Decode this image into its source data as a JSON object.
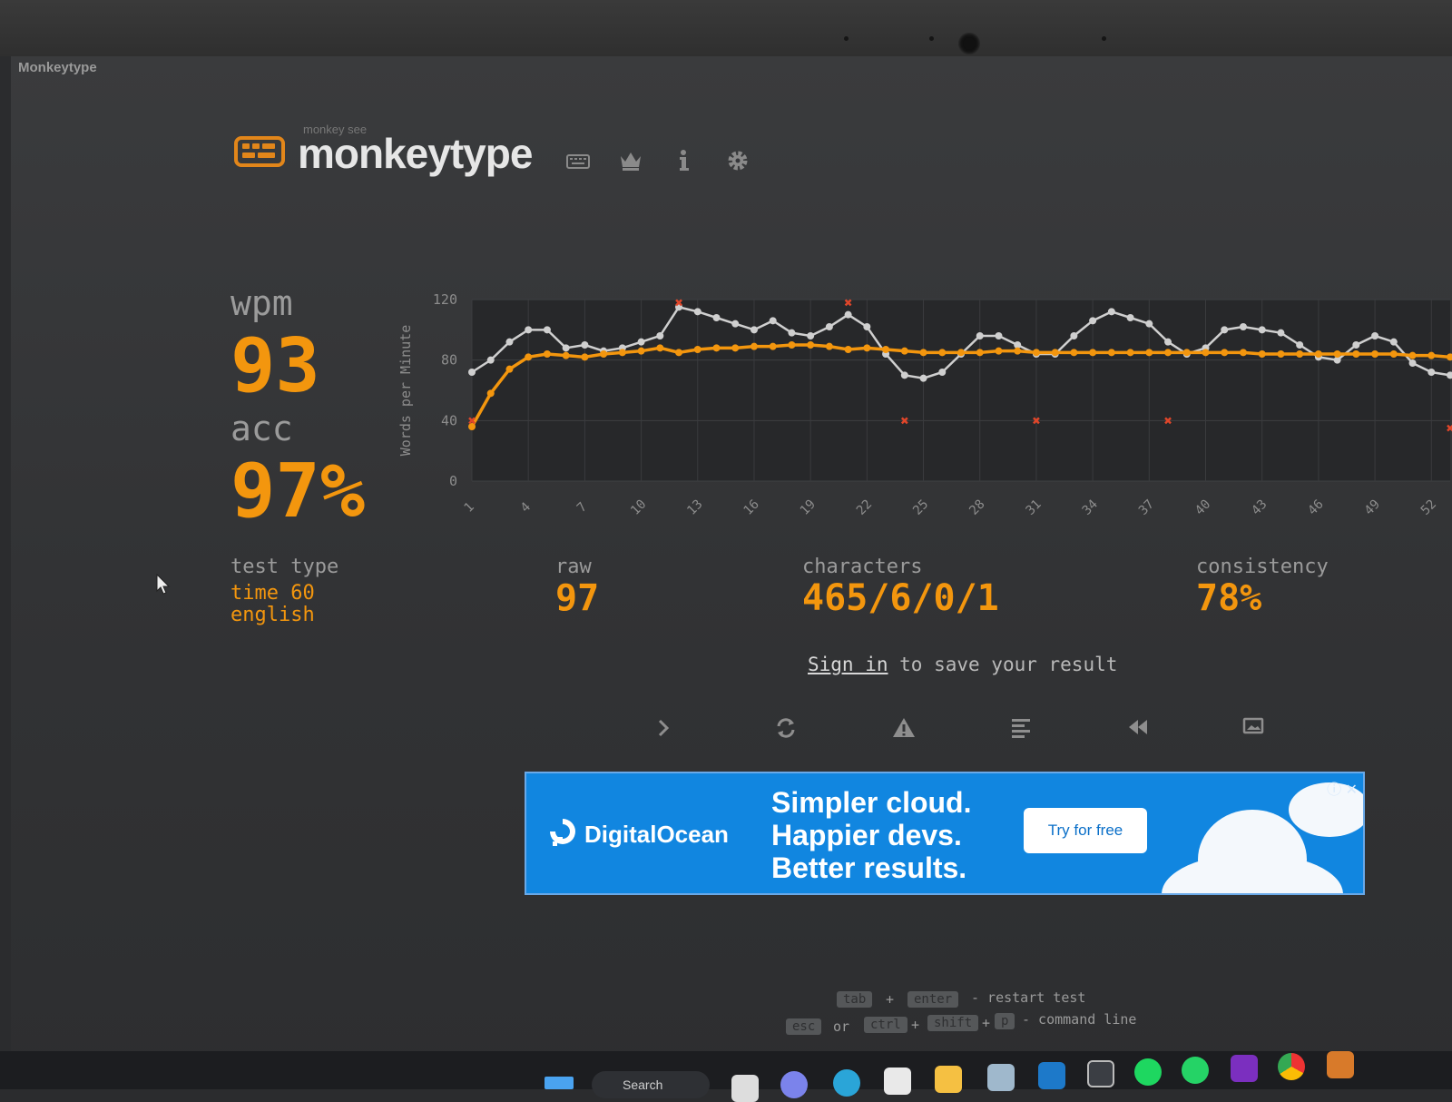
{
  "window": {
    "tab_title": "Monkeytype"
  },
  "header": {
    "logo_sub": "monkey see",
    "logo_text": "monkeytype",
    "nav": [
      "keyboard-icon",
      "crown-icon",
      "info-icon",
      "gear-icon"
    ]
  },
  "stats": {
    "wpm_label": "wpm",
    "wpm_value": "93",
    "acc_label": "acc",
    "acc_value": "97%",
    "test_type_label": "test type",
    "test_type_mode": "time 60",
    "test_type_language": "english",
    "raw_label": "raw",
    "raw_value": "97",
    "characters_label": "characters",
    "characters_value": "465/6/0/1",
    "consistency_label": "consistency",
    "consistency_value": "78%"
  },
  "signin": {
    "link": "Sign in",
    "rest": " to save your result"
  },
  "actions": [
    "next-test",
    "restart-test",
    "report-icon",
    "words-history",
    "replay",
    "screenshot"
  ],
  "ad": {
    "brand": "DigitalOcean",
    "headline_1": "Simpler cloud.",
    "headline_2": "Happier devs.",
    "headline_3": "Better results.",
    "cta": "Try for free",
    "accent": "#1186e0"
  },
  "shortcuts": {
    "k_tab": "tab",
    "plus1": "+",
    "k_enter": "enter",
    "restart": "- restart test",
    "k_esc": "esc",
    "or": "or",
    "k_ctrl": "ctrl",
    "plus2": "+",
    "k_shift": "shift",
    "plus3": "+",
    "k_p": "p",
    "command": "- command line"
  },
  "taskbar": {
    "search": "Search"
  },
  "colors": {
    "accent": "#f3960e",
    "raw_line": "#cfcfcf",
    "error": "#e0462a"
  },
  "chart_data": {
    "type": "line",
    "ylabel": "Words per Minute",
    "ylim": [
      0,
      120
    ],
    "yticks": [
      "0",
      "40",
      "80",
      "120"
    ],
    "xticks": [
      "1",
      "4",
      "7",
      "10",
      "13",
      "16",
      "19",
      "22",
      "25",
      "28",
      "31",
      "34",
      "37",
      "40",
      "43",
      "46",
      "49",
      "52"
    ],
    "x": [
      1,
      2,
      3,
      4,
      5,
      6,
      7,
      8,
      9,
      10,
      11,
      12,
      13,
      14,
      15,
      16,
      17,
      18,
      19,
      20,
      21,
      22,
      23,
      24,
      25,
      26,
      27,
      28,
      29,
      30,
      31,
      32,
      33,
      34,
      35,
      36,
      37,
      38,
      39,
      40,
      41,
      42,
      43,
      44,
      45,
      46,
      47,
      48,
      49,
      50,
      51,
      52,
      53
    ],
    "series": [
      {
        "name": "wpm",
        "color": "#f3960e",
        "values": [
          36,
          58,
          74,
          82,
          84,
          83,
          82,
          84,
          85,
          86,
          88,
          85,
          87,
          88,
          88,
          89,
          89,
          90,
          90,
          89,
          87,
          88,
          87,
          86,
          85,
          85,
          85,
          85,
          86,
          86,
          85,
          85,
          85,
          85,
          85,
          85,
          85,
          85,
          85,
          85,
          85,
          85,
          84,
          84,
          84,
          84,
          84,
          84,
          84,
          84,
          83,
          83,
          82
        ]
      },
      {
        "name": "raw",
        "color": "#cfcfcf",
        "values": [
          72,
          80,
          92,
          100,
          100,
          88,
          90,
          86,
          88,
          92,
          96,
          115,
          112,
          108,
          104,
          100,
          106,
          98,
          96,
          102,
          110,
          102,
          84,
          70,
          68,
          72,
          84,
          96,
          96,
          90,
          84,
          84,
          96,
          106,
          112,
          108,
          104,
          92,
          84,
          88,
          100,
          102,
          100,
          98,
          90,
          82,
          80,
          90,
          96,
          92,
          78,
          72,
          70
        ]
      }
    ],
    "errors": [
      {
        "x": 1,
        "y": 40
      },
      {
        "x": 12,
        "y": 118
      },
      {
        "x": 21,
        "y": 118
      },
      {
        "x": 24,
        "y": 40
      },
      {
        "x": 31,
        "y": 40
      },
      {
        "x": 38,
        "y": 40
      },
      {
        "x": 53,
        "y": 35
      }
    ]
  }
}
